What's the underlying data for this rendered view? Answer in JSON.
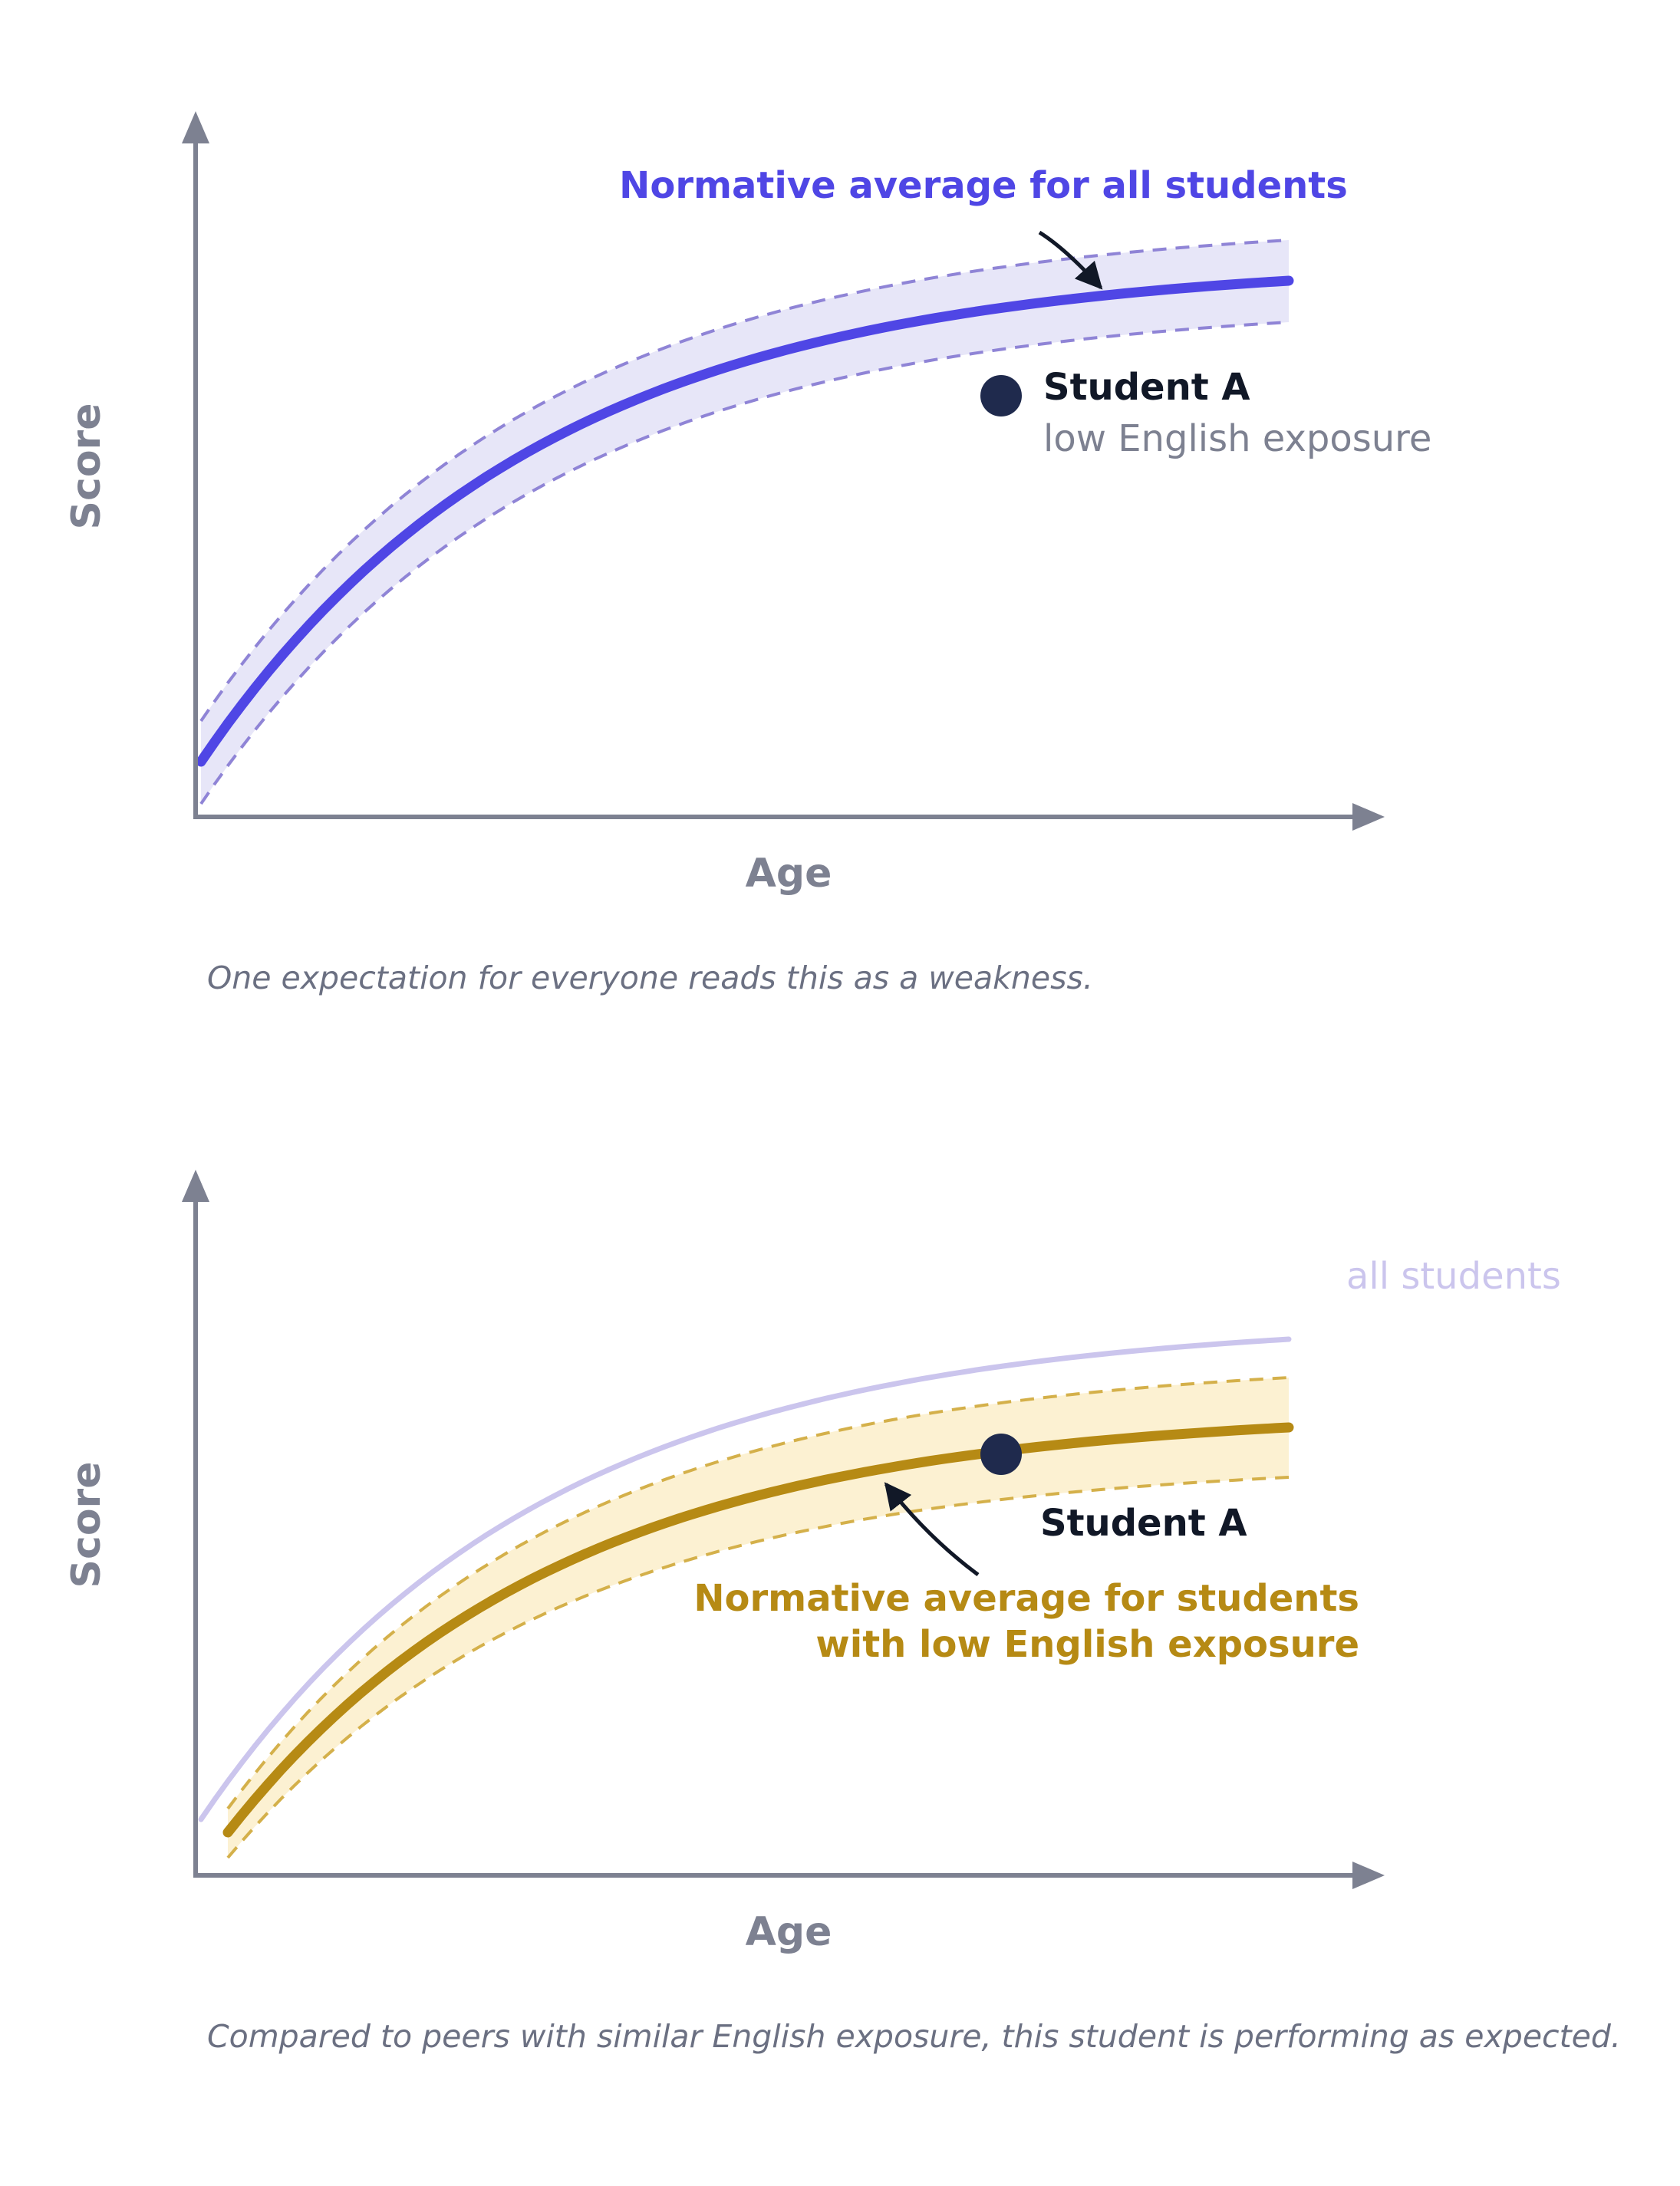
{
  "colors": {
    "axis": "#7d8191",
    "norm_all": "#4f46e5",
    "norm_all_band": "#e7e6f8",
    "norm_all_dash": "#8f84d6",
    "norm_low": "#b68a14",
    "norm_low_band": "#fcf1d2",
    "norm_low_dash": "#d4b04a",
    "faded_all": "#cbc5ed",
    "student_dot": "#1f2a4d",
    "dark_text": "#111827",
    "muted_text": "#7d8191",
    "caption_text": "#6b7082"
  },
  "panel1": {
    "y_label": "Score",
    "x_label": "Age",
    "curve_label": "Normative average for all students",
    "student_label": "Student A",
    "student_sublabel": "low English exposure",
    "caption": "One expectation for everyone reads this as a weakness."
  },
  "panel2": {
    "y_label": "Score",
    "x_label": "Age",
    "reference_label": "all students",
    "student_label": "Student A",
    "curve_label_line1": "Normative average for students",
    "curve_label_line2": "with low English exposure",
    "caption": "Compared to peers with similar English exposure, this student is performing as expected."
  }
}
